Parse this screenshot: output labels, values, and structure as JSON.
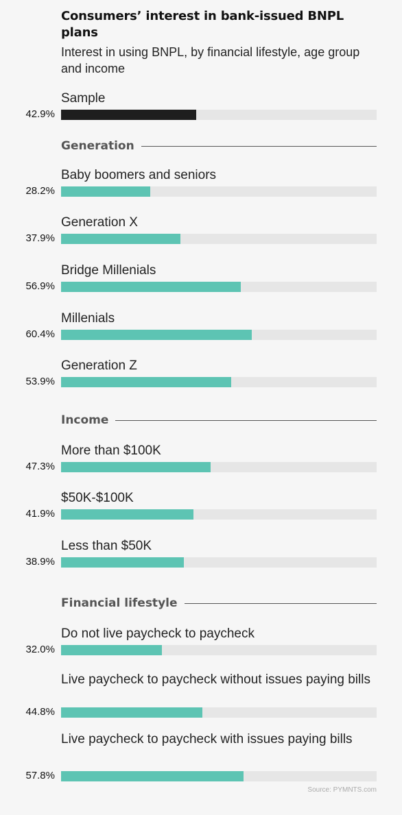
{
  "title": "Consumers’ interest in bank-issued BNPL plans",
  "subtitle": "Interest in using BNPL, by financial lifestyle, age group and income",
  "source": "Source: PYMNTS.com",
  "colors": {
    "sample_bar": "#1e1e1e",
    "bar": "#5dc4b3",
    "track": "#e6e6e6",
    "background": "#f6f6f6"
  },
  "chart_data": {
    "type": "bar",
    "orientation": "horizontal",
    "value_unit": "%",
    "xlim": [
      0,
      100
    ],
    "grid": false,
    "sample": {
      "label": "Sample",
      "value": 42.9,
      "display": "42.9%"
    },
    "groups": [
      {
        "name": "Generation",
        "items": [
          {
            "label": "Baby boomers and seniors",
            "value": 28.2,
            "display": "28.2%"
          },
          {
            "label": "Generation X",
            "value": 37.9,
            "display": "37.9%"
          },
          {
            "label": "Bridge Millenials",
            "value": 56.9,
            "display": "56.9%"
          },
          {
            "label": "Millenials",
            "value": 60.4,
            "display": "60.4%"
          },
          {
            "label": "Generation Z",
            "value": 53.9,
            "display": "53.9%"
          }
        ]
      },
      {
        "name": "Income",
        "items": [
          {
            "label": "More than $100K",
            "value": 47.3,
            "display": "47.3%"
          },
          {
            "label": "$50K-$100K",
            "value": 41.9,
            "display": "41.9%"
          },
          {
            "label": "Less than $50K",
            "value": 38.9,
            "display": "38.9%"
          }
        ]
      },
      {
        "name": "Financial lifestyle",
        "items": [
          {
            "label": "Do not live paycheck to paycheck",
            "value": 32.0,
            "display": "32.0%"
          },
          {
            "label": "Live paycheck to paycheck without issues paying bills",
            "value": 44.8,
            "display": "44.8%"
          },
          {
            "label": "Live paycheck to paycheck with issues paying bills",
            "value": 57.8,
            "display": "57.8%"
          }
        ]
      }
    ]
  }
}
